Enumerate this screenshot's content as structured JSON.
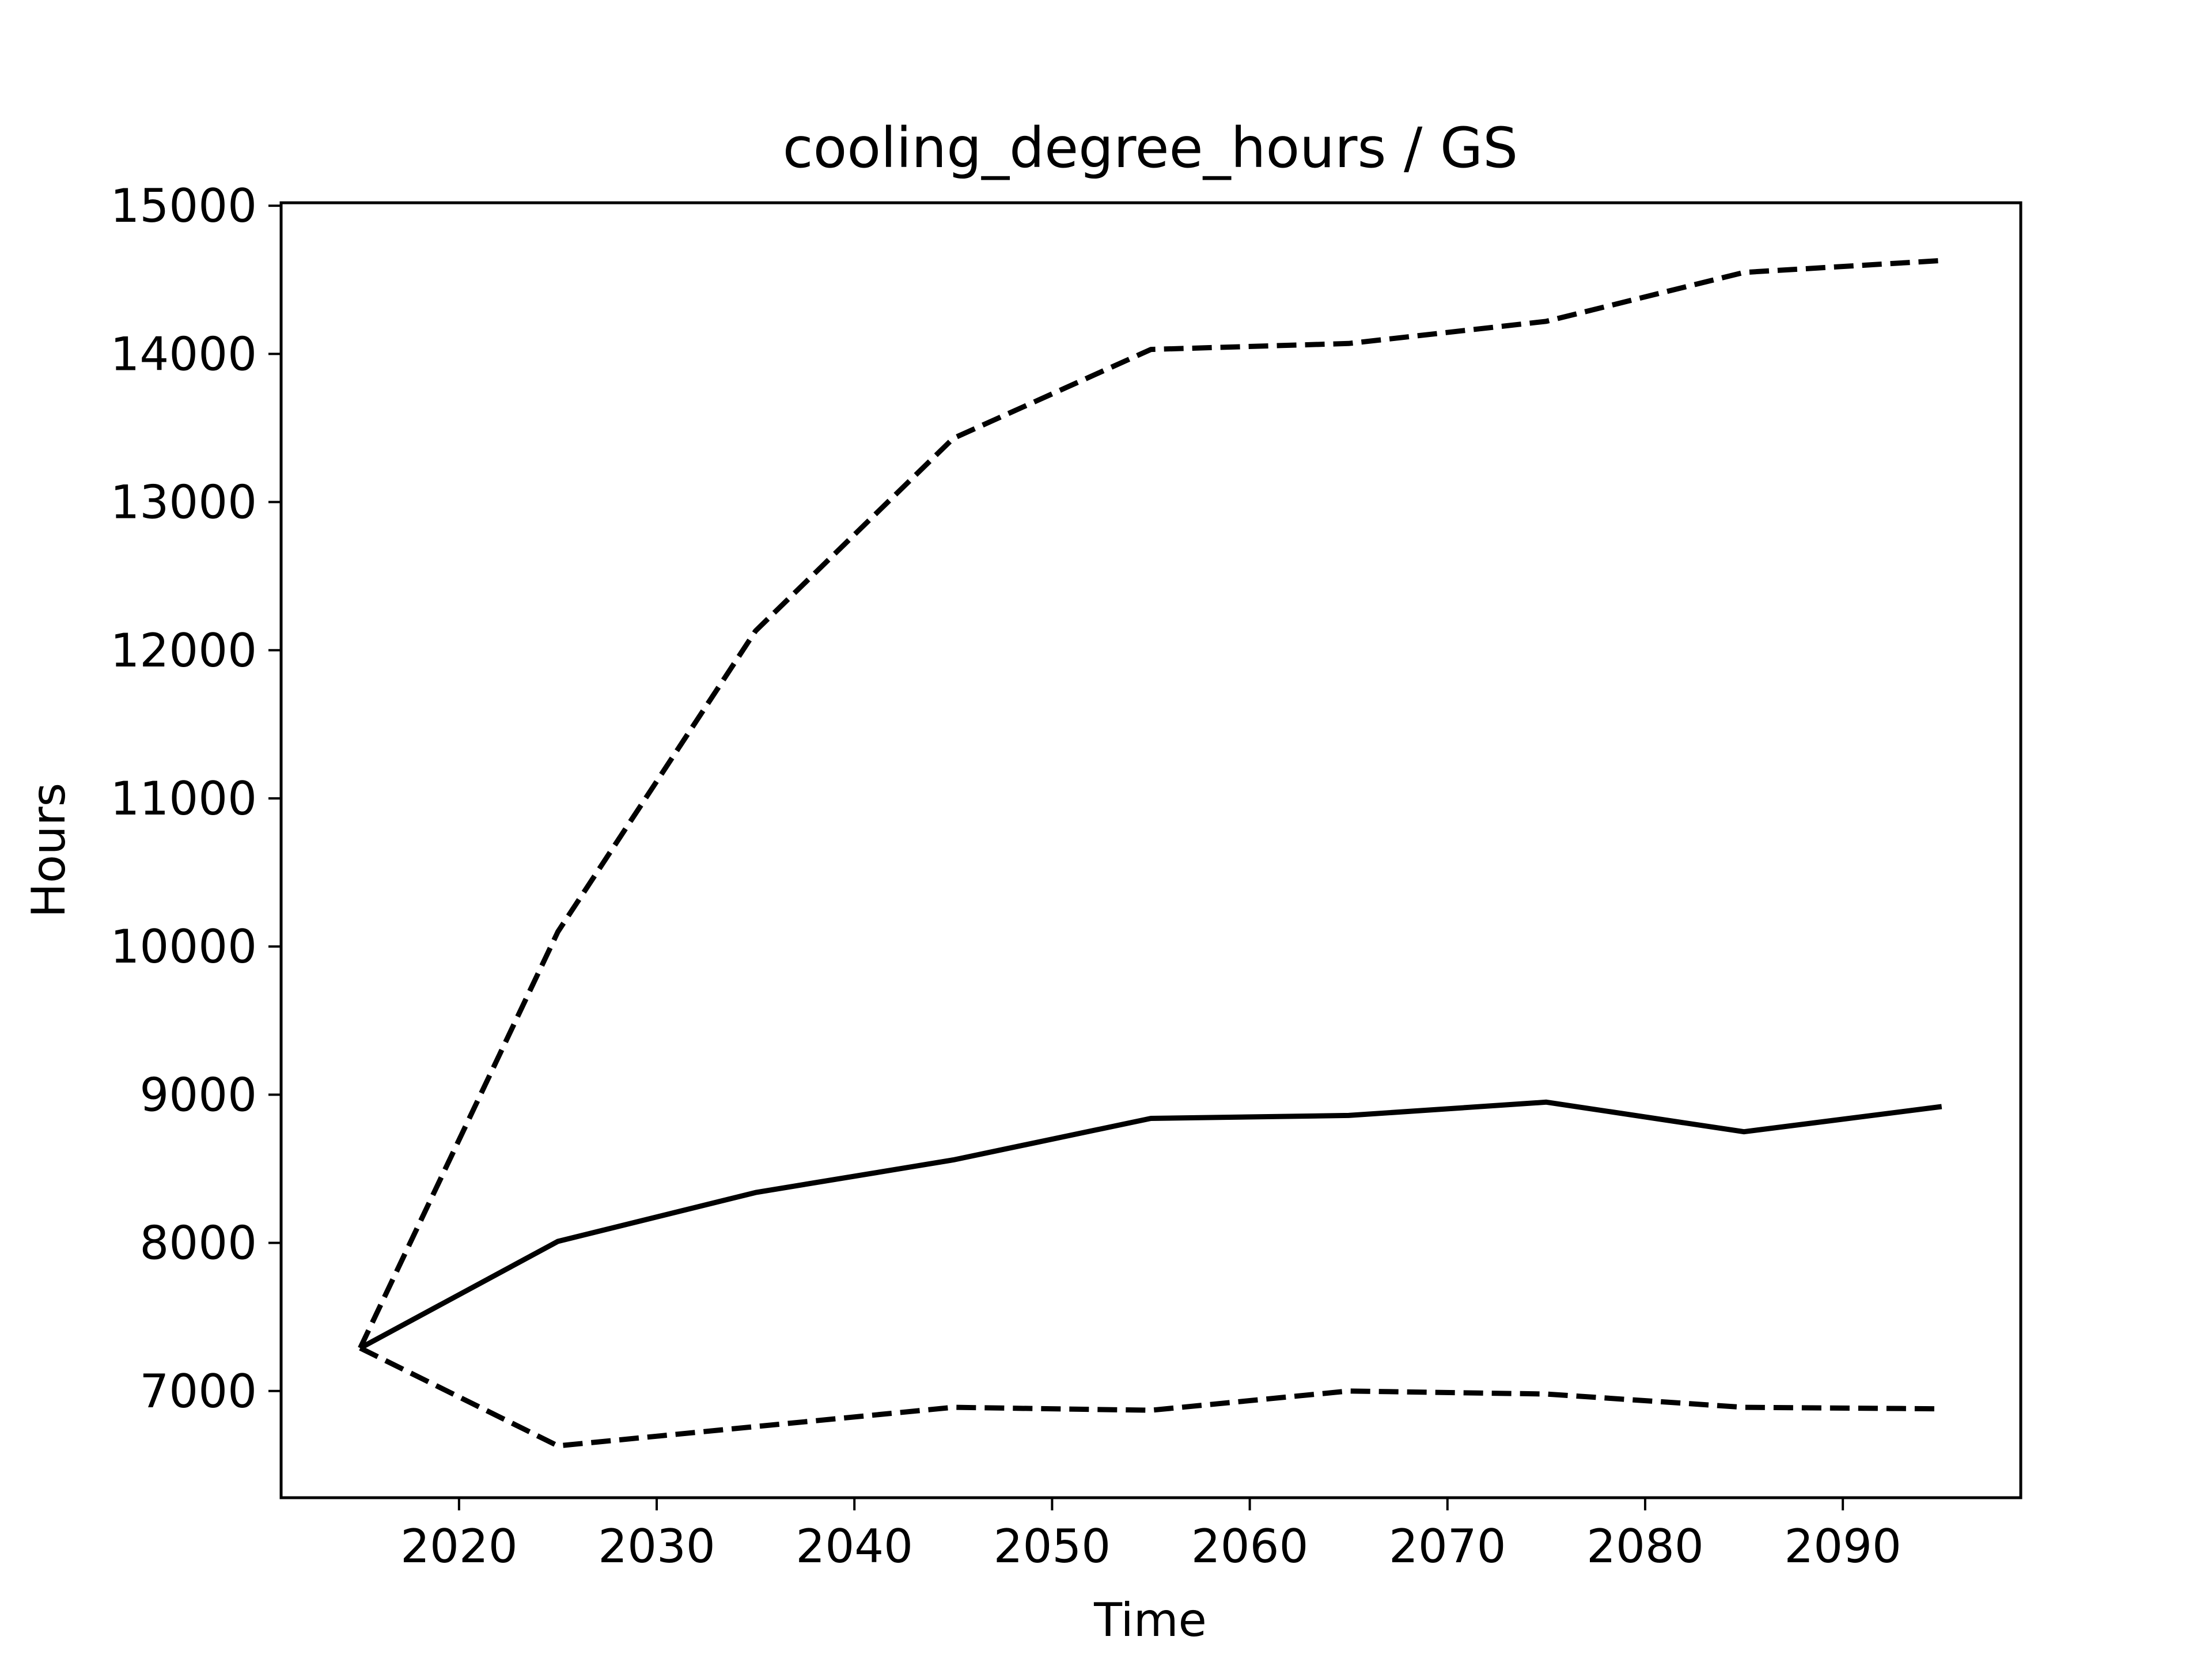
{
  "chart_data": {
    "type": "line",
    "title": "cooling_degree_hours / GS",
    "xlabel": "Time",
    "ylabel": "Hours",
    "xlim": [
      2011,
      2099
    ],
    "ylim": [
      6280,
      15020
    ],
    "xticks": [
      2020,
      2030,
      2040,
      2050,
      2060,
      2070,
      2080,
      2090
    ],
    "yticks": [
      7000,
      8000,
      9000,
      10000,
      11000,
      12000,
      13000,
      14000,
      15000
    ],
    "grid": false,
    "x": [
      2015,
      2025,
      2035,
      2045,
      2055,
      2065,
      2075,
      2085,
      2095
    ],
    "series": [
      {
        "style": "solid",
        "values": [
          7290,
          8010,
          8340,
          8560,
          8840,
          8860,
          8950,
          8750,
          8920
        ]
      },
      {
        "style": "dashed",
        "values": [
          7290,
          10100,
          12130,
          13430,
          14030,
          14070,
          14220,
          14550,
          14630
        ]
      },
      {
        "style": "dashed",
        "values": [
          7290,
          6630,
          6760,
          6890,
          6870,
          7000,
          6980,
          6890,
          6880
        ]
      }
    ],
    "colors": {
      "line": "#000000",
      "axes": "#000000",
      "background": "#ffffff"
    }
  }
}
